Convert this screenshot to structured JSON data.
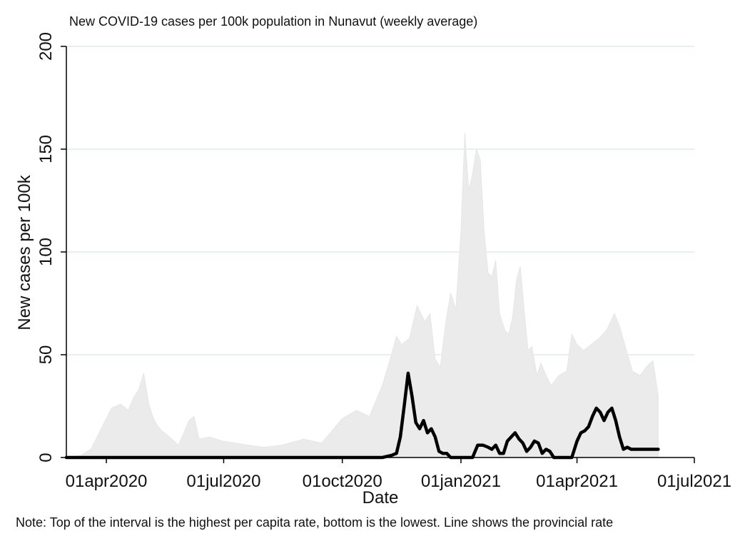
{
  "chart_data": {
    "type": "area",
    "title": "New COVID-19 cases per 100k population in Nunavut (weekly average)",
    "xlabel": "Date",
    "ylabel": "New cases per 100k",
    "note": "Note: Top of the interval is the highest per capita rate, bottom is the lowest. Line shows the provincial rate",
    "ylim": [
      0,
      200
    ],
    "xlim": [
      "2020-03-01",
      "2021-07-01"
    ],
    "yticks": [
      0,
      50,
      100,
      150,
      200
    ],
    "xticks": [
      {
        "date": "2020-04-01",
        "label": "01apr2020"
      },
      {
        "date": "2020-07-01",
        "label": "01jul2020"
      },
      {
        "date": "2020-10-01",
        "label": "01oct2020"
      },
      {
        "date": "2021-01-01",
        "label": "01jan2021"
      },
      {
        "date": "2021-04-01",
        "label": "01apr2021"
      },
      {
        "date": "2021-07-01",
        "label": "01jul2021"
      }
    ],
    "grid": true,
    "colors": {
      "band": "#ebebeb",
      "line": "#000000",
      "grid": "#e2ecec"
    },
    "series": [
      {
        "kind": "band",
        "x": [
          "2020-03-01",
          "2020-03-12",
          "2020-03-20",
          "2020-03-28",
          "2020-04-05",
          "2020-04-12",
          "2020-04-18",
          "2020-04-22",
          "2020-04-26",
          "2020-04-30",
          "2020-05-04",
          "2020-05-07",
          "2020-05-10",
          "2020-05-14",
          "2020-05-20",
          "2020-05-27",
          "2020-06-04",
          "2020-06-08",
          "2020-06-12",
          "2020-06-20",
          "2020-06-30",
          "2020-07-10",
          "2020-07-20",
          "2020-08-01",
          "2020-08-15",
          "2020-09-01",
          "2020-09-15",
          "2020-10-01",
          "2020-10-12",
          "2020-10-22",
          "2020-11-01",
          "2020-11-08",
          "2020-11-12",
          "2020-11-16",
          "2020-11-22",
          "2020-11-28",
          "2020-12-04",
          "2020-12-08",
          "2020-12-12",
          "2020-12-16",
          "2020-12-20",
          "2020-12-24",
          "2020-12-28",
          "2021-01-01",
          "2021-01-04",
          "2021-01-07",
          "2021-01-10",
          "2021-01-13",
          "2021-01-16",
          "2021-01-19",
          "2021-01-22",
          "2021-01-25",
          "2021-01-28",
          "2021-01-31",
          "2021-02-04",
          "2021-02-07",
          "2021-02-10",
          "2021-02-13",
          "2021-02-16",
          "2021-02-19",
          "2021-02-22",
          "2021-02-25",
          "2021-03-01",
          "2021-03-04",
          "2021-03-08",
          "2021-03-12",
          "2021-03-18",
          "2021-03-24",
          "2021-03-28",
          "2021-04-01",
          "2021-04-06",
          "2021-04-12",
          "2021-04-18",
          "2021-04-24",
          "2021-04-30",
          "2021-05-04",
          "2021-05-08",
          "2021-05-14",
          "2021-05-20",
          "2021-05-26",
          "2021-05-30",
          "2021-06-03"
        ],
        "y": [
          0,
          1,
          4,
          14,
          24,
          26,
          23,
          29,
          33,
          41,
          26,
          20,
          16,
          13,
          10,
          6,
          18,
          20,
          9,
          10,
          8,
          7,
          6,
          5,
          6,
          9,
          7,
          19,
          23,
          20,
          35,
          50,
          59,
          55,
          58,
          74,
          66,
          70,
          48,
          44,
          65,
          80,
          72,
          110,
          158,
          130,
          138,
          150,
          145,
          110,
          90,
          88,
          96,
          70,
          62,
          60,
          68,
          86,
          93,
          72,
          52,
          54,
          40,
          46,
          40,
          35,
          40,
          42,
          60,
          55,
          52,
          55,
          58,
          62,
          70,
          64,
          55,
          42,
          40,
          45,
          47,
          30
        ],
        "y_low": [
          0,
          0,
          0,
          0,
          0,
          0,
          0,
          0,
          0,
          0,
          0,
          0,
          0,
          0,
          0,
          0,
          0,
          0,
          0,
          0,
          0,
          0,
          0,
          0,
          0,
          0,
          0,
          0,
          0,
          0,
          0,
          0,
          0,
          0,
          0,
          0,
          0,
          0,
          0,
          0,
          0,
          0,
          0,
          0,
          0,
          0,
          0,
          0,
          0,
          0,
          0,
          0,
          0,
          0,
          0,
          0,
          0,
          0,
          0,
          0,
          0,
          0,
          0,
          0,
          0,
          0,
          0,
          0,
          0,
          0,
          0,
          0,
          0,
          0,
          0,
          0,
          0,
          0,
          0,
          0,
          0,
          0
        ]
      },
      {
        "kind": "line",
        "x": [
          "2020-03-01",
          "2020-11-01",
          "2020-11-08",
          "2020-11-12",
          "2020-11-15",
          "2020-11-18",
          "2020-11-21",
          "2020-11-24",
          "2020-11-27",
          "2020-11-30",
          "2020-12-03",
          "2020-12-06",
          "2020-12-09",
          "2020-12-12",
          "2020-12-15",
          "2020-12-18",
          "2020-12-21",
          "2020-12-24",
          "2020-12-28",
          "2021-01-02",
          "2021-01-10",
          "2021-01-14",
          "2021-01-18",
          "2021-01-22",
          "2021-01-25",
          "2021-01-28",
          "2021-01-31",
          "2021-02-03",
          "2021-02-06",
          "2021-02-09",
          "2021-02-12",
          "2021-02-15",
          "2021-02-18",
          "2021-02-21",
          "2021-02-24",
          "2021-02-27",
          "2021-03-02",
          "2021-03-05",
          "2021-03-08",
          "2021-03-11",
          "2021-03-14",
          "2021-03-17",
          "2021-03-25",
          "2021-03-28",
          "2021-04-01",
          "2021-04-04",
          "2021-04-07",
          "2021-04-10",
          "2021-04-13",
          "2021-04-16",
          "2021-04-19",
          "2021-04-22",
          "2021-04-25",
          "2021-04-28",
          "2021-05-01",
          "2021-05-04",
          "2021-05-07",
          "2021-05-10",
          "2021-05-13",
          "2021-05-16",
          "2021-05-19",
          "2021-05-22",
          "2021-05-25",
          "2021-05-28",
          "2021-05-31",
          "2021-06-03"
        ],
        "y": [
          0,
          0,
          1,
          2,
          10,
          25,
          41,
          30,
          17,
          14,
          18,
          12,
          14,
          10,
          3,
          2,
          2,
          0,
          0,
          0,
          0,
          6,
          6,
          5,
          4,
          6,
          2,
          2,
          8,
          10,
          12,
          9,
          7,
          3,
          5,
          8,
          7,
          2,
          4,
          3,
          0,
          0,
          0,
          0,
          8,
          12,
          13,
          15,
          20,
          24,
          22,
          18,
          22,
          24,
          18,
          10,
          4,
          5,
          4,
          4,
          4,
          4,
          4,
          4,
          4,
          4
        ]
      }
    ]
  }
}
